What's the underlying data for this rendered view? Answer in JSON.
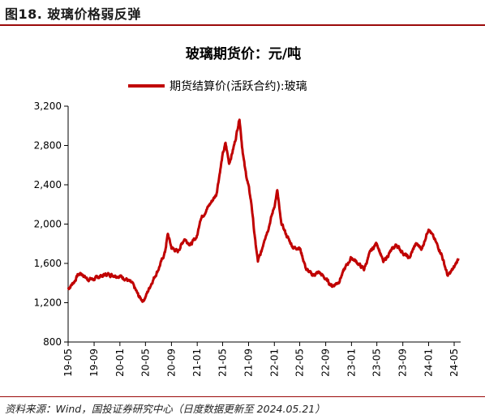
{
  "figure": {
    "header": "图18. 玻璃价格弱反弹",
    "source": "资料来源：Wind，国投证券研究中心（日度数据更新至 2024.05.21）"
  },
  "colors": {
    "series": "#c00000",
    "rule": "#9b0a0a"
  },
  "chart_data": {
    "type": "line",
    "title": "玻璃期货价：元/吨",
    "xlabel": "",
    "ylabel": "",
    "ylim": [
      800,
      3200
    ],
    "yticks": [
      "800",
      "1,200",
      "1,600",
      "2,000",
      "2,400",
      "2,800",
      "3,200"
    ],
    "ytick_values": [
      800,
      1200,
      1600,
      2000,
      2400,
      2800,
      3200
    ],
    "xticks": [
      "19-05",
      "19-09",
      "20-01",
      "20-05",
      "20-09",
      "21-01",
      "21-05",
      "21-09",
      "22-01",
      "22-05",
      "22-09",
      "23-01",
      "23-05",
      "23-09",
      "24-01",
      "24-05"
    ],
    "legend_position": "top",
    "grid": false,
    "series": [
      {
        "name": "期货结算价(活跃合约):玻璃",
        "x": [
          "2019-05-01",
          "2019-06-01",
          "2019-06-15",
          "2019-07-01",
          "2019-08-01",
          "2019-09-01",
          "2019-10-01",
          "2019-11-01",
          "2019-12-01",
          "2020-01-01",
          "2020-02-01",
          "2020-03-01",
          "2020-04-01",
          "2020-04-20",
          "2020-05-01",
          "2020-06-01",
          "2020-07-01",
          "2020-08-01",
          "2020-08-15",
          "2020-09-01",
          "2020-10-01",
          "2020-11-01",
          "2020-12-01",
          "2021-01-01",
          "2021-01-15",
          "2021-02-01",
          "2021-03-01",
          "2021-04-01",
          "2021-05-01",
          "2021-05-15",
          "2021-06-01",
          "2021-06-15",
          "2021-07-01",
          "2021-07-20",
          "2021-08-01",
          "2021-08-15",
          "2021-09-01",
          "2021-09-15",
          "2021-10-01",
          "2021-10-15",
          "2021-11-01",
          "2021-11-15",
          "2021-12-01",
          "2022-01-01",
          "2022-01-15",
          "2022-02-01",
          "2022-03-01",
          "2022-04-01",
          "2022-05-01",
          "2022-06-01",
          "2022-07-01",
          "2022-08-01",
          "2022-09-01",
          "2022-10-01",
          "2022-11-01",
          "2022-12-01",
          "2023-01-01",
          "2023-02-01",
          "2023-03-01",
          "2023-04-01",
          "2023-05-01",
          "2023-06-01",
          "2023-07-01",
          "2023-08-01",
          "2023-09-01",
          "2023-10-01",
          "2023-11-01",
          "2023-12-01",
          "2024-01-01",
          "2024-02-01",
          "2024-03-01",
          "2024-04-01",
          "2024-05-01",
          "2024-05-21"
        ],
        "values": [
          1340,
          1420,
          1480,
          1500,
          1440,
          1440,
          1470,
          1490,
          1480,
          1470,
          1440,
          1390,
          1260,
          1220,
          1260,
          1410,
          1540,
          1710,
          1900,
          1760,
          1720,
          1850,
          1790,
          1880,
          2050,
          2100,
          2200,
          2300,
          2700,
          2820,
          2620,
          2720,
          2860,
          3080,
          2800,
          2560,
          2380,
          2200,
          1850,
          1620,
          1720,
          1850,
          1940,
          2180,
          2340,
          2020,
          1880,
          1760,
          1760,
          1540,
          1480,
          1510,
          1440,
          1370,
          1410,
          1550,
          1660,
          1600,
          1540,
          1720,
          1810,
          1610,
          1710,
          1790,
          1710,
          1650,
          1800,
          1750,
          1960,
          1830,
          1700,
          1470,
          1560,
          1650
        ]
      }
    ]
  }
}
